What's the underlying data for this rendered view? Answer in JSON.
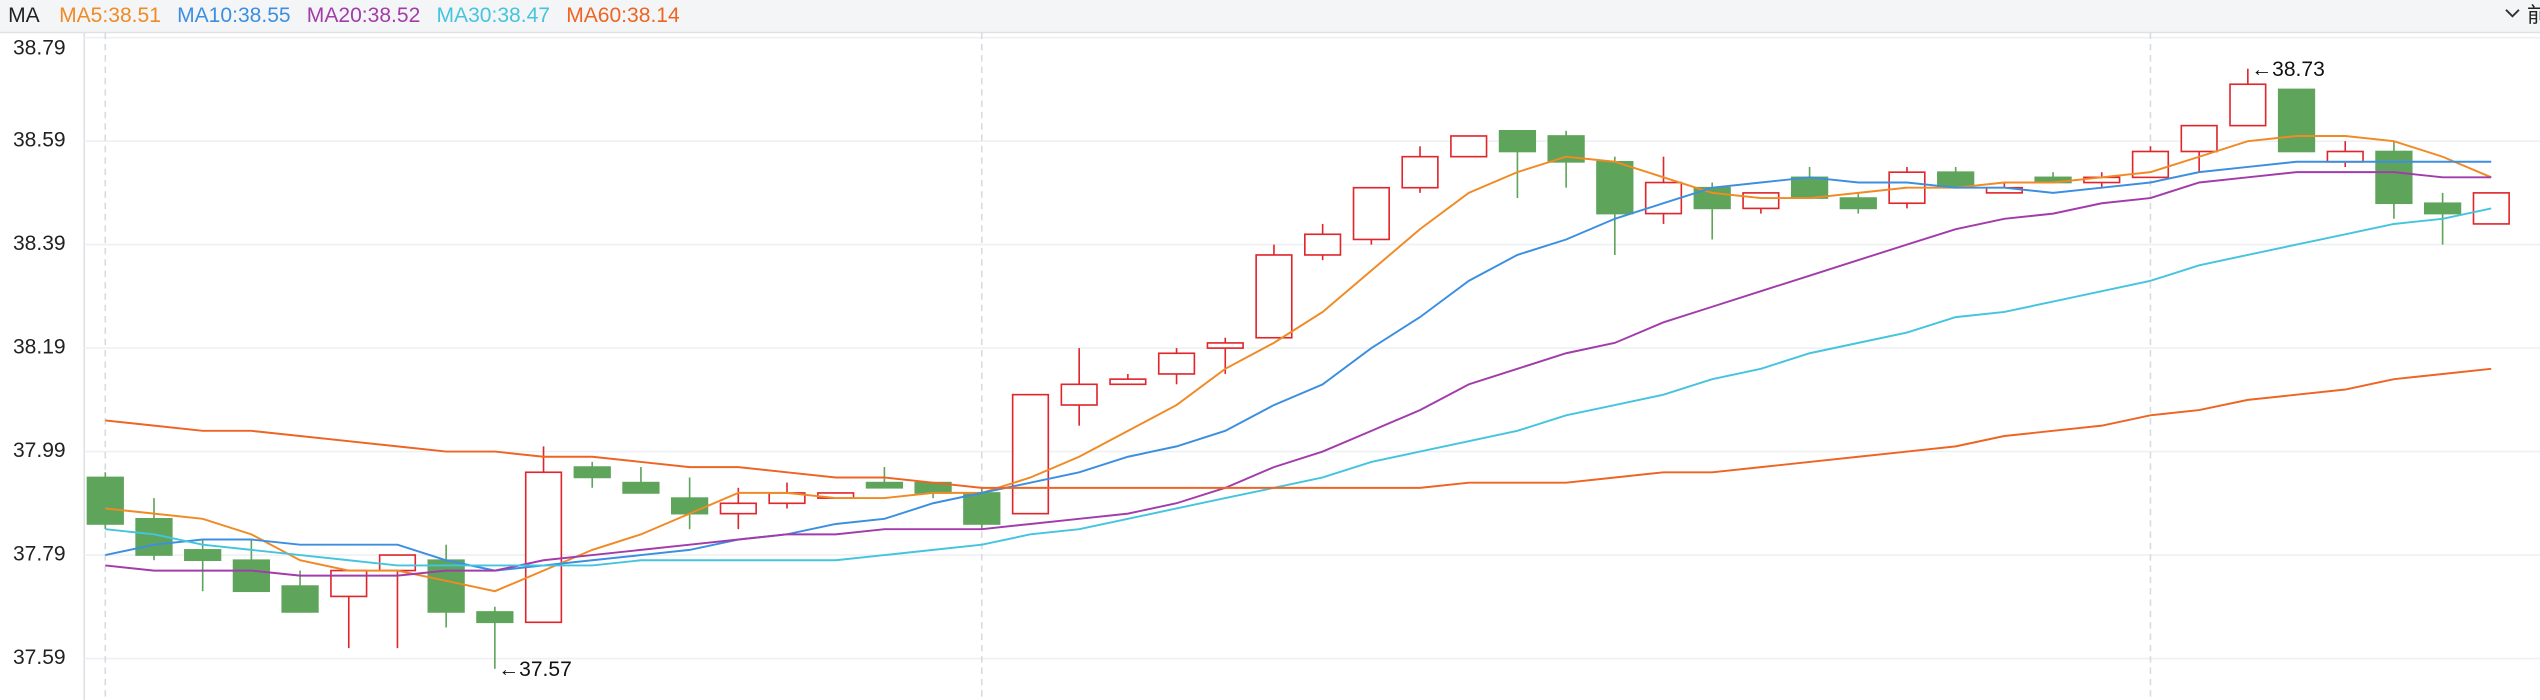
{
  "chart_data": {
    "type": "candlestick",
    "indicator": "MA",
    "header_right": "前",
    "ylim": [
      37.51,
      38.8
    ],
    "yticks": [
      37.59,
      37.79,
      37.99,
      38.19,
      38.39,
      38.59,
      38.79
    ],
    "grid": true,
    "up_color": "#e0262b",
    "down_color": "#5ea45a",
    "candles": {
      "open": [
        37.94,
        37.86,
        37.8,
        37.78,
        37.73,
        37.71,
        37.76,
        37.78,
        37.68,
        37.66,
        37.96,
        37.93,
        37.9,
        37.87,
        37.89,
        37.9,
        37.93,
        37.93,
        37.91,
        37.87,
        38.08,
        38.12,
        38.14,
        38.19,
        38.21,
        38.37,
        38.4,
        38.5,
        38.56,
        38.61,
        38.6,
        38.55,
        38.45,
        38.5,
        38.46,
        38.52,
        38.48,
        38.47,
        38.53,
        38.49,
        38.52,
        38.51,
        38.52,
        38.57,
        38.62,
        38.69,
        38.55,
        38.57,
        38.47,
        38.43
      ],
      "high": [
        37.95,
        37.9,
        37.82,
        37.82,
        37.76,
        37.76,
        37.79,
        37.81,
        37.69,
        38.0,
        37.97,
        37.96,
        37.94,
        37.92,
        37.93,
        37.91,
        37.96,
        37.93,
        37.92,
        38.1,
        38.19,
        38.14,
        38.19,
        38.21,
        38.39,
        38.43,
        38.5,
        38.58,
        38.6,
        38.61,
        38.61,
        38.56,
        38.56,
        38.51,
        38.49,
        38.54,
        38.49,
        38.54,
        38.54,
        38.51,
        38.53,
        38.53,
        38.58,
        38.62,
        38.73,
        38.69,
        38.59,
        38.59,
        38.49,
        38.49
      ],
      "low": [
        37.84,
        37.78,
        37.72,
        37.72,
        37.68,
        37.61,
        37.61,
        37.65,
        37.57,
        37.66,
        37.92,
        37.91,
        37.84,
        37.84,
        37.88,
        37.9,
        37.92,
        37.9,
        37.84,
        37.87,
        38.04,
        38.12,
        38.12,
        38.14,
        38.21,
        38.36,
        38.39,
        38.49,
        38.56,
        38.48,
        38.5,
        38.37,
        38.43,
        38.4,
        38.45,
        38.48,
        38.45,
        38.46,
        38.5,
        38.49,
        38.51,
        38.5,
        38.52,
        38.53,
        38.62,
        38.57,
        38.54,
        38.44,
        38.39,
        38.43
      ],
      "close": [
        37.85,
        37.79,
        37.78,
        37.72,
        37.68,
        37.76,
        37.79,
        37.68,
        37.66,
        37.95,
        37.94,
        37.91,
        37.87,
        37.89,
        37.91,
        37.91,
        37.92,
        37.91,
        37.85,
        38.1,
        38.12,
        38.13,
        38.18,
        38.2,
        38.37,
        38.41,
        38.5,
        38.56,
        38.6,
        38.57,
        38.55,
        38.45,
        38.51,
        38.46,
        38.49,
        38.48,
        38.46,
        38.53,
        38.5,
        38.5,
        38.51,
        38.52,
        38.57,
        38.62,
        38.7,
        38.57,
        38.57,
        38.47,
        38.45,
        38.49
      ]
    },
    "annotations": [
      {
        "value": 38.73,
        "label": "←38.73"
      },
      {
        "value": 37.57,
        "label": "←37.57"
      }
    ],
    "series": [
      {
        "name": "MA5:38.51",
        "color": "#f08a24",
        "values": [
          37.88,
          37.87,
          37.86,
          37.83,
          37.78,
          37.76,
          37.76,
          37.74,
          37.72,
          37.76,
          37.8,
          37.83,
          37.87,
          37.91,
          37.91,
          37.9,
          37.9,
          37.91,
          37.91,
          37.94,
          37.98,
          38.03,
          38.08,
          38.15,
          38.2,
          38.26,
          38.34,
          38.42,
          38.49,
          38.53,
          38.56,
          38.55,
          38.52,
          38.49,
          38.48,
          38.48,
          38.49,
          38.5,
          38.5,
          38.51,
          38.51,
          38.52,
          38.53,
          38.56,
          38.59,
          38.6,
          38.6,
          38.59,
          38.56,
          38.52
        ]
      },
      {
        "name": "MA10:38.55",
        "color": "#3c8fe0",
        "values": [
          37.79,
          37.81,
          37.82,
          37.82,
          37.81,
          37.81,
          37.81,
          37.78,
          37.76,
          37.77,
          37.78,
          37.79,
          37.8,
          37.82,
          37.83,
          37.85,
          37.86,
          37.89,
          37.91,
          37.93,
          37.95,
          37.98,
          38.0,
          38.03,
          38.08,
          38.12,
          38.19,
          38.25,
          38.32,
          38.37,
          38.4,
          38.44,
          38.47,
          38.5,
          38.51,
          38.52,
          38.51,
          38.51,
          38.5,
          38.5,
          38.49,
          38.5,
          38.51,
          38.53,
          38.54,
          38.55,
          38.55,
          38.55,
          38.55,
          38.55
        ]
      },
      {
        "name": "MA20:38.52",
        "color": "#a23caa",
        "values": [
          37.77,
          37.76,
          37.76,
          37.76,
          37.75,
          37.75,
          37.75,
          37.76,
          37.76,
          37.78,
          37.79,
          37.8,
          37.81,
          37.82,
          37.83,
          37.83,
          37.84,
          37.84,
          37.84,
          37.85,
          37.86,
          37.87,
          37.89,
          37.92,
          37.96,
          37.99,
          38.03,
          38.07,
          38.12,
          38.15,
          38.18,
          38.2,
          38.24,
          38.27,
          38.3,
          38.33,
          38.36,
          38.39,
          38.42,
          38.44,
          38.45,
          38.47,
          38.48,
          38.51,
          38.52,
          38.53,
          38.53,
          38.53,
          38.52,
          38.52
        ]
      },
      {
        "name": "MA30:38.47",
        "color": "#45c4de",
        "values": [
          37.84,
          37.83,
          37.81,
          37.8,
          37.79,
          37.78,
          37.77,
          37.77,
          37.77,
          37.77,
          37.77,
          37.78,
          37.78,
          37.78,
          37.78,
          37.78,
          37.79,
          37.8,
          37.81,
          37.83,
          37.84,
          37.86,
          37.88,
          37.9,
          37.92,
          37.94,
          37.97,
          37.99,
          38.01,
          38.03,
          38.06,
          38.08,
          38.1,
          38.13,
          38.15,
          38.18,
          38.2,
          38.22,
          38.25,
          38.26,
          38.28,
          38.3,
          38.32,
          38.35,
          38.37,
          38.39,
          38.41,
          38.43,
          38.44,
          38.46
        ]
      },
      {
        "name": "MA60:38.14",
        "color": "#ee6423",
        "values": [
          38.05,
          38.04,
          38.03,
          38.03,
          38.02,
          38.01,
          38.0,
          37.99,
          37.99,
          37.98,
          37.98,
          37.97,
          37.96,
          37.96,
          37.95,
          37.94,
          37.94,
          37.93,
          37.92,
          37.92,
          37.92,
          37.92,
          37.92,
          37.92,
          37.92,
          37.92,
          37.92,
          37.92,
          37.93,
          37.93,
          37.93,
          37.94,
          37.95,
          37.95,
          37.96,
          37.97,
          37.98,
          37.99,
          38.0,
          38.02,
          38.03,
          38.04,
          38.06,
          38.07,
          38.09,
          38.1,
          38.11,
          38.13,
          38.14,
          38.15
        ]
      }
    ]
  }
}
